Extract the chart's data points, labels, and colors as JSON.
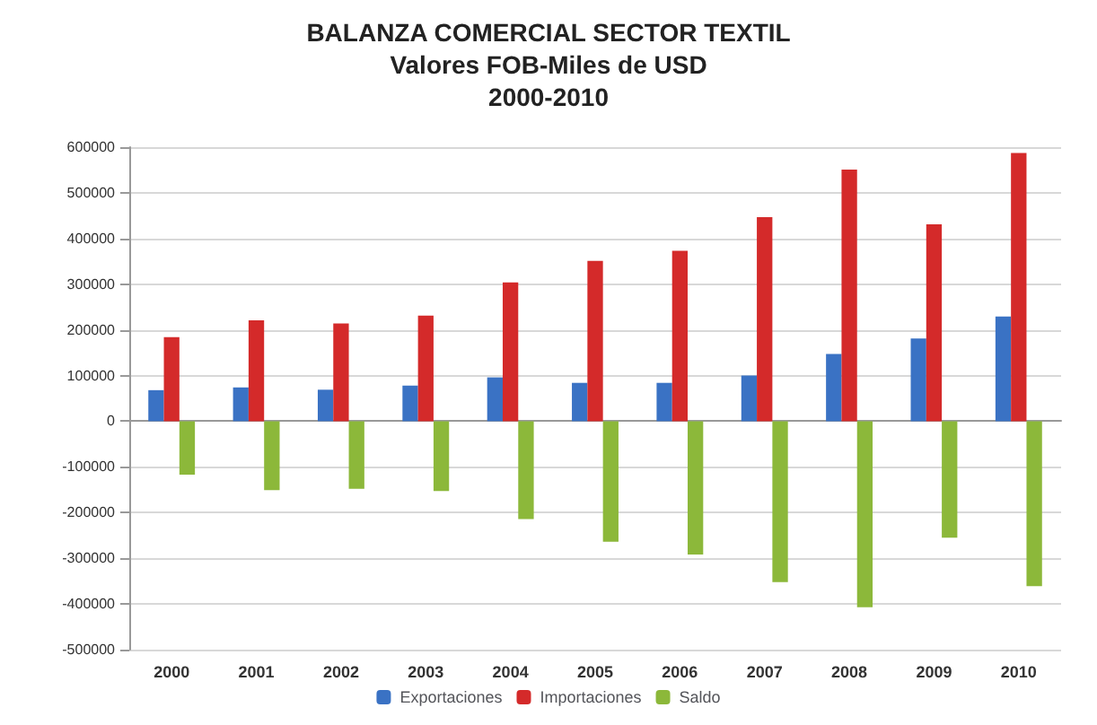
{
  "chart_data": {
    "type": "bar",
    "title": "BALANZA COMERCIAL SECTOR TEXTIL\nValores FOB-Miles de USD\n2000-2010",
    "categories": [
      "2000",
      "2001",
      "2002",
      "2003",
      "2004",
      "2005",
      "2006",
      "2007",
      "2008",
      "2009",
      "2010"
    ],
    "series": [
      {
        "name": "Exportaciones",
        "color": "#3a72c4",
        "values": [
          68000,
          74000,
          69000,
          78000,
          96000,
          84000,
          84000,
          100000,
          147000,
          181000,
          229000
        ]
      },
      {
        "name": "Importaciones",
        "color": "#d42a2a",
        "values": [
          184000,
          221000,
          214000,
          231000,
          304000,
          351000,
          373000,
          447000,
          551000,
          431000,
          587000
        ]
      },
      {
        "name": "Saldo",
        "color": "#8cb83a",
        "values": [
          -117000,
          -151000,
          -148000,
          -153000,
          -214000,
          -264000,
          -292000,
          -352000,
          -407000,
          -255000,
          -361000
        ]
      }
    ],
    "ylim": [
      -500000,
      600000
    ],
    "yticks": [
      -500000,
      -400000,
      -300000,
      -200000,
      -100000,
      0,
      100000,
      200000,
      300000,
      400000,
      500000,
      600000
    ],
    "grid": "y",
    "legend": "bottom"
  }
}
